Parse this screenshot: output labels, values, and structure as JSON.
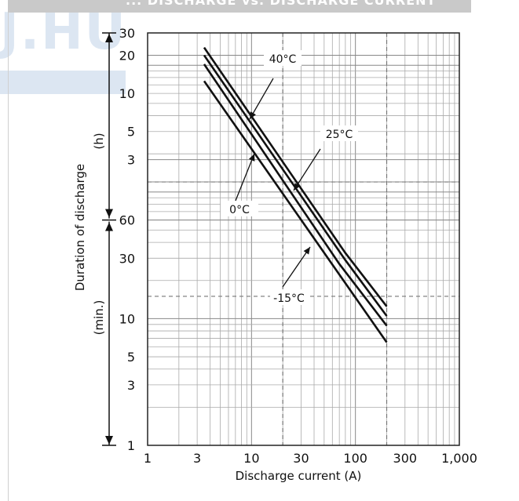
{
  "banner_text": "... DISCHARGE vs. DISCHARGE CURRENT",
  "watermark_text": "J.HU",
  "chart_data": {
    "type": "line",
    "title": "",
    "xlabel": "Discharge current (A)",
    "ylabel": "Duration of discharge",
    "y_unit_hours": "(h)",
    "y_unit_minutes": "(min.)",
    "x_scale": "log",
    "xlim": [
      1,
      1000
    ],
    "x_ticks": [
      {
        "value": 1,
        "label": "1"
      },
      {
        "value": 3,
        "label": "3"
      },
      {
        "value": 10,
        "label": "10"
      },
      {
        "value": 30,
        "label": "30"
      },
      {
        "value": 100,
        "label": "100"
      },
      {
        "value": 300,
        "label": "300"
      },
      {
        "value": 1000,
        "label": "1,000"
      }
    ],
    "y_scale": "log",
    "ylim_minutes": [
      1,
      1800
    ],
    "y_ticks_hours": [
      {
        "value_min": 1800,
        "label": "30"
      },
      {
        "value_min": 1200,
        "label": "20"
      },
      {
        "value_min": 600,
        "label": "10"
      },
      {
        "value_min": 300,
        "label": "5"
      },
      {
        "value_min": 180,
        "label": "3"
      }
    ],
    "y_ticks_minutes": [
      {
        "value_min": 60,
        "label": "60"
      },
      {
        "value_min": 30,
        "label": "30"
      },
      {
        "value_min": 10,
        "label": "10"
      },
      {
        "value_min": 5,
        "label": "5"
      },
      {
        "value_min": 3,
        "label": "3"
      },
      {
        "value_min": 1,
        "label": "1"
      }
    ],
    "dashed_reference": {
      "x": [
        20,
        200
      ],
      "y_minutes": [
        120,
        15
      ]
    },
    "grid": true,
    "series": [
      {
        "name": "40°C",
        "x": [
          3.5,
          80,
          200
        ],
        "y_minutes": [
          1380,
          33,
          12.5
        ]
      },
      {
        "name": "25°C",
        "x": [
          3.5,
          80,
          200
        ],
        "y_minutes": [
          1200,
          29,
          10.5
        ]
      },
      {
        "name": "0°C",
        "x": [
          3.5,
          70,
          200
        ],
        "y_minutes": [
          1020,
          27,
          8.8
        ]
      },
      {
        "name": "-15°C",
        "x": [
          3.5,
          200
        ],
        "y_minutes": [
          750,
          6.5
        ]
      }
    ],
    "annotations": [
      {
        "series": "40°C",
        "text": "40°C"
      },
      {
        "series": "25°C",
        "text": "25°C"
      },
      {
        "series": "0°C",
        "text": "0°C"
      },
      {
        "series": "-15°C",
        "text": "-15°C"
      }
    ]
  }
}
